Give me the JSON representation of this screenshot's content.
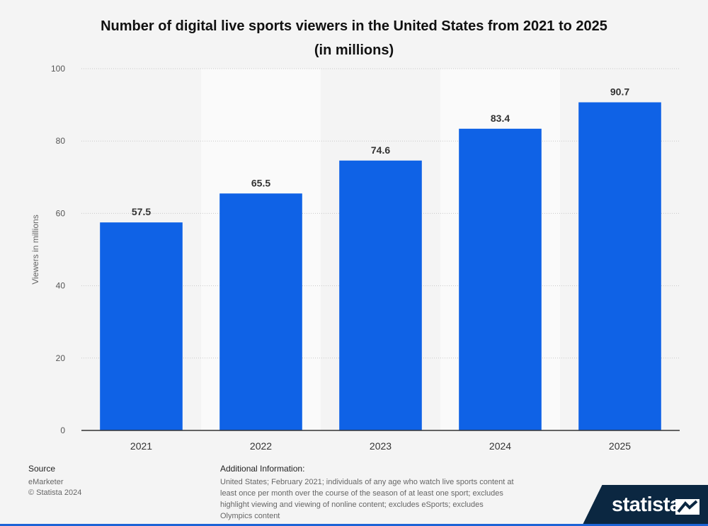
{
  "chart_data": {
    "type": "bar",
    "title_lines": [
      "Number of digital live sports viewers in the United States from 2021 to 2025",
      "(in millions)"
    ],
    "categories": [
      "2021",
      "2022",
      "2023",
      "2024",
      "2025"
    ],
    "values": [
      57.5,
      65.5,
      74.6,
      83.4,
      90.7
    ],
    "value_labels": [
      "57.5",
      "65.5",
      "74.6",
      "83.4",
      "90.7"
    ],
    "ylabel": "Viewers in millions",
    "xlabel": "",
    "ylim": [
      0,
      100
    ],
    "yticks": [
      0,
      20,
      40,
      60,
      80,
      100
    ],
    "grid": true,
    "bar_color": "#0f62e6",
    "alt_band_color": "#fafafa"
  },
  "footer": {
    "source_heading": "Source",
    "source_name": "eMarketer",
    "copyright": "© Statista 2024",
    "info_heading": "Additional Information:",
    "info_text": "United States; February 2021; individuals of any age who watch live sports content at least once per month over the course of the season of at least one sport; excludes highlight viewing and viewing of nonline content; excludes eSports; excludes Olympics content"
  },
  "brand": {
    "name": "statista"
  }
}
